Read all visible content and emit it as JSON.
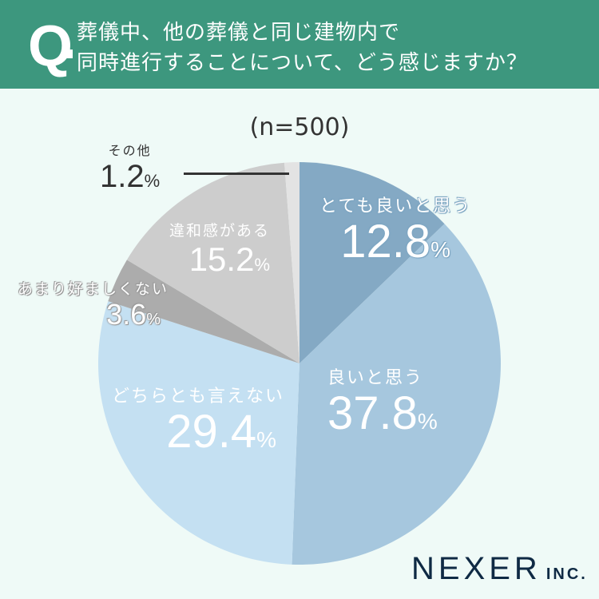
{
  "header": {
    "q_mark": "Q",
    "question_line1": "葬儀中、他の葬儀と同じ建物内で",
    "question_line2": "同時進行することについて、どう感じますか？",
    "background_color": "#3d977e"
  },
  "sample_size": "(n=500)",
  "labels": {
    "very_good": {
      "category": "とても良いと思う",
      "value": "12.8",
      "unit": "%"
    },
    "good": {
      "category": "良いと思う",
      "value": "37.8",
      "unit": "%"
    },
    "neutral": {
      "category": "どちらとも言えない",
      "value": "29.4",
      "unit": "%"
    },
    "not_preferable": {
      "category": "あまり好ましくない",
      "value": "3.6",
      "unit": "%"
    },
    "uncomfortable": {
      "category": "違和感がある",
      "value": "15.2",
      "unit": "%"
    },
    "other": {
      "category": "その他",
      "value": "1.2",
      "unit": "%"
    }
  },
  "logo": {
    "name": "NEXER",
    "suffix": "INC."
  },
  "chart_data": {
    "type": "pie",
    "title": "葬儀中、他の葬儀と同じ建物内で同時進行することについて、どう感じますか？",
    "subtitle": "(n=500)",
    "categories": [
      "とても良いと思う",
      "良いと思う",
      "どちらとも言えない",
      "あまり好ましくない",
      "違和感がある",
      "その他"
    ],
    "values": [
      12.8,
      37.8,
      29.4,
      3.6,
      15.2,
      1.2
    ],
    "colors": [
      "#84a9c4",
      "#a6c7de",
      "#c4e0f2",
      "#acacac",
      "#cdcdcd",
      "#e3e3e3"
    ],
    "start_angle": "12 o'clock",
    "direction": "clockwise",
    "unit": "%"
  }
}
